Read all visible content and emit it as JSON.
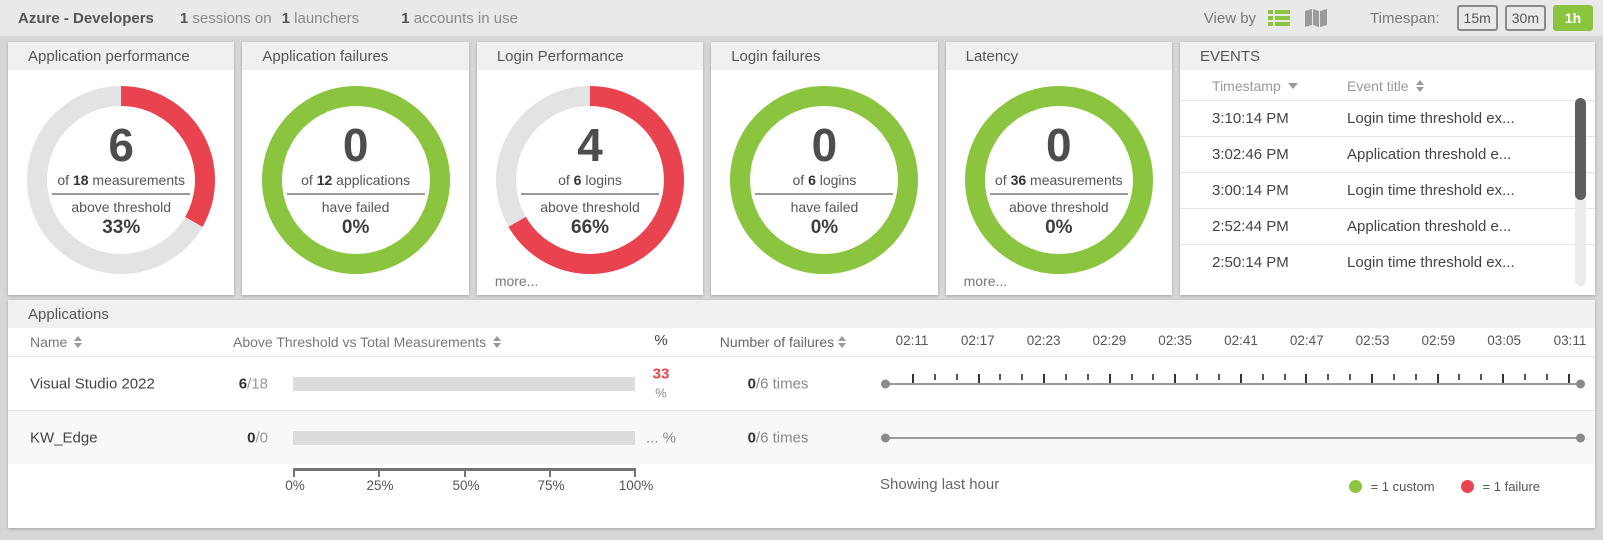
{
  "topbar": {
    "title": "Azure - Developers",
    "stats": [
      {
        "value": "1",
        "label": "sessions on"
      },
      {
        "value": "1",
        "label": "launchers"
      },
      {
        "value": "1",
        "label": "accounts in use"
      }
    ],
    "view_by_label": "View by",
    "timespan_label": "Timespan:",
    "timespan_options": [
      {
        "label": "15m",
        "active": false
      },
      {
        "label": "30m",
        "active": false
      },
      {
        "label": "1h",
        "active": true
      }
    ]
  },
  "colors": {
    "green": "#8bc53f",
    "red": "#e8434e",
    "donut_track": "#e3e3e3"
  },
  "donuts": [
    {
      "title": "Application performance",
      "value": "6",
      "of_word": "of",
      "total": "18",
      "unit": "measurements",
      "status": "above threshold",
      "percent": "33%",
      "arc_percent": 33.3,
      "arc_color": "#e8434e",
      "track_color": "#e3e3e3",
      "more_label": ""
    },
    {
      "title": "Application failures",
      "value": "0",
      "of_word": "of",
      "total": "12",
      "unit": "applications",
      "status": "have failed",
      "percent": "0%",
      "arc_percent": 100,
      "arc_color": "#8bc53f",
      "track_color": "#e3e3e3",
      "more_label": ""
    },
    {
      "title": "Login Performance",
      "value": "4",
      "of_word": "of",
      "total": "6",
      "unit": "logins",
      "status": "above threshold",
      "percent": "66%",
      "arc_percent": 66.7,
      "arc_color": "#e8434e",
      "track_color": "#e3e3e3",
      "more_label": "more..."
    },
    {
      "title": "Login failures",
      "value": "0",
      "of_word": "of",
      "total": "6",
      "unit": "logins",
      "status": "have failed",
      "percent": "0%",
      "arc_percent": 100,
      "arc_color": "#8bc53f",
      "track_color": "#e3e3e3",
      "more_label": ""
    },
    {
      "title": "Latency",
      "value": "0",
      "of_word": "of",
      "total": "36",
      "unit": "measurements",
      "status": "above threshold",
      "percent": "0%",
      "arc_percent": 100,
      "arc_color": "#8bc53f",
      "track_color": "#e3e3e3",
      "more_label": "more..."
    }
  ],
  "events": {
    "title": "EVENTS",
    "columns": {
      "timestamp": "Timestamp",
      "event_title": "Event title"
    },
    "rows": [
      {
        "time": "3:10:14 PM",
        "title": "Login time threshold ex..."
      },
      {
        "time": "3:02:46 PM",
        "title": "Application threshold e..."
      },
      {
        "time": "3:00:14 PM",
        "title": "Login time threshold ex..."
      },
      {
        "time": "2:52:44 PM",
        "title": "Application threshold e..."
      },
      {
        "time": "2:50:14 PM",
        "title": "Login time threshold ex..."
      }
    ]
  },
  "applications": {
    "title": "Applications",
    "columns": {
      "name": "Name",
      "measurements": "Above Threshold vs Total Measurements",
      "percent": "%",
      "failures": "Number of failures"
    },
    "timeline_labels": [
      "02:11",
      "02:17",
      "02:23",
      "02:29",
      "02:35",
      "02:41",
      "02:47",
      "02:53",
      "02:59",
      "03:05",
      "03:11"
    ],
    "rows": [
      {
        "name": "Visual Studio 2022",
        "above": "6",
        "total_suffix": "/18",
        "bar_percent": 33.3,
        "bar_color": "#e8434e",
        "pct_line1": "33",
        "pct_line2": "%",
        "pct_color": "#e8434e",
        "fail_value": "0",
        "fail_suffix": "/6 times"
      },
      {
        "name": "KW_Edge",
        "above": "0",
        "total_suffix": "/0",
        "bar_percent": 0,
        "bar_color": "#e8434e",
        "pct_line1": "... %",
        "pct_line2": "",
        "pct_color": "#888888",
        "fail_value": "0",
        "fail_suffix": "/6 times"
      }
    ],
    "axis_labels": [
      "0%",
      "25%",
      "50%",
      "75%",
      "100%"
    ],
    "footer_note": "Showing last hour",
    "legend": [
      {
        "color": "#8bc53f",
        "label": "= 1 custom"
      },
      {
        "color": "#e8434e",
        "label": "= 1 failure"
      }
    ]
  }
}
